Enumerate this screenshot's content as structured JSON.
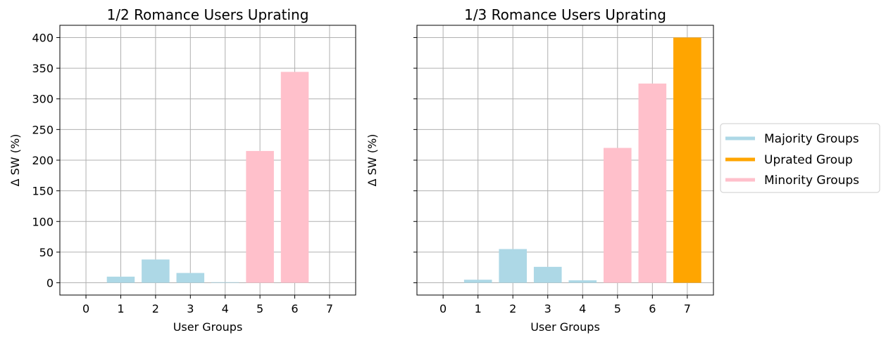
{
  "colors": {
    "majority": "#add8e6",
    "uprated": "#ffa500",
    "minority": "#ffc0cb",
    "grid": "#b0b0b0",
    "axis": "#000000"
  },
  "legend": {
    "placement": "right-center",
    "items": [
      {
        "label": "Majority Groups",
        "color": "#add8e6"
      },
      {
        "label": "Uprated Group",
        "color": "#ffa500"
      },
      {
        "label": "Minority Groups",
        "color": "#ffc0cb"
      }
    ]
  },
  "chart_data": [
    {
      "type": "bar",
      "title": "1/2 Romance Users Uprating",
      "xlabel": "User Groups",
      "ylabel": "Δ SW (%)",
      "categories": [
        "0",
        "1",
        "2",
        "3",
        "4",
        "5",
        "6",
        "7"
      ],
      "values": [
        0,
        10,
        38,
        16,
        1,
        215,
        344,
        0
      ],
      "groups": [
        "majority",
        "majority",
        "majority",
        "majority",
        "majority",
        "minority",
        "minority",
        "minority"
      ],
      "ylim": [
        -20,
        420
      ],
      "yticks": [
        "0",
        "50",
        "100",
        "150",
        "200",
        "250",
        "300",
        "350",
        "400"
      ],
      "grid": true,
      "show_ytick_labels": true
    },
    {
      "type": "bar",
      "title": "1/3 Romance Users Uprating",
      "xlabel": "User Groups",
      "ylabel": "Δ SW (%)",
      "categories": [
        "0",
        "1",
        "2",
        "3",
        "4",
        "5",
        "6",
        "7"
      ],
      "values": [
        0,
        5,
        55,
        26,
        4,
        220,
        325,
        400
      ],
      "groups": [
        "majority",
        "majority",
        "majority",
        "majority",
        "majority",
        "minority",
        "minority",
        "uprated"
      ],
      "ylim": [
        -20,
        420
      ],
      "yticks": [
        "0",
        "50",
        "100",
        "150",
        "200",
        "250",
        "300",
        "350",
        "400"
      ],
      "grid": true,
      "show_ytick_labels": false
    }
  ]
}
